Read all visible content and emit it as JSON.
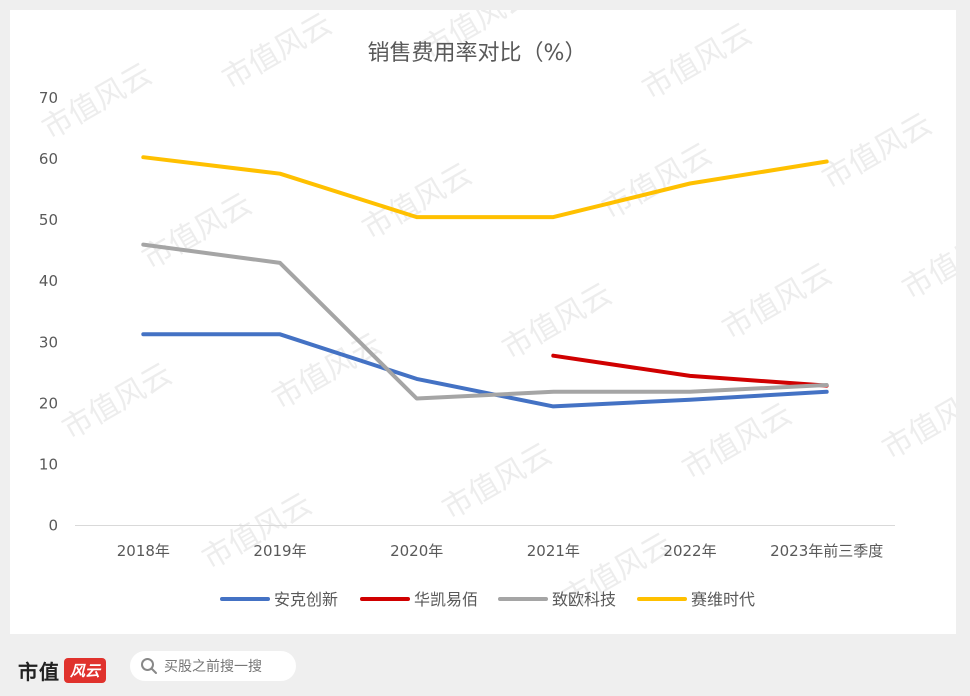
{
  "chart_data": {
    "type": "line",
    "title": "销售费用率对比（%）",
    "xlabel": "",
    "ylabel": "",
    "categories": [
      "2018年",
      "2019年",
      "2020年",
      "2021年",
      "2022年",
      "2023年前三季度"
    ],
    "ylim": [
      0,
      70
    ],
    "yticks": [
      0,
      10,
      20,
      30,
      40,
      50,
      60,
      70
    ],
    "grid": false,
    "legend_position": "bottom",
    "series": [
      {
        "name": "安克创新",
        "color": "#4472c4",
        "values": [
          31.3,
          31.3,
          24.0,
          19.5,
          20.6,
          21.9
        ]
      },
      {
        "name": "华凯易佰",
        "color": "#d00000",
        "values": [
          null,
          null,
          null,
          27.8,
          24.5,
          22.9
        ]
      },
      {
        "name": "致欧科技",
        "color": "#a5a5a5",
        "values": [
          46.0,
          43.0,
          20.8,
          21.9,
          21.9,
          23.0
        ]
      },
      {
        "name": "赛维时代",
        "color": "#ffc000",
        "values": [
          60.3,
          57.6,
          50.5,
          50.5,
          56.0,
          59.6
        ]
      }
    ]
  },
  "watermark": "市值风云",
  "footer": {
    "brand_name": "市值",
    "brand_badge": "风云",
    "search_text": "买股之前搜一搜"
  }
}
